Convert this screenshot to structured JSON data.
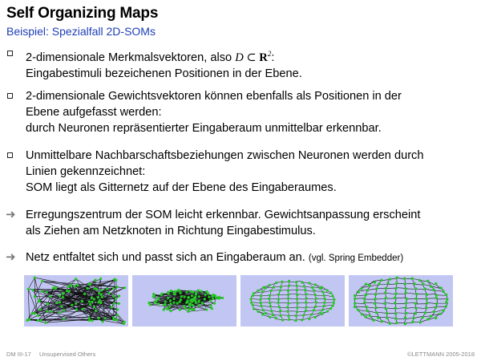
{
  "slide": {
    "title": "Self Organizing Maps",
    "subtitle": "Beispiel: Spezialfall 2D-SOMs"
  },
  "bullets": [
    {
      "type": "box",
      "lines": [
        "2-dimensionale Merkmalsvektoren, also",
        "Eingabestimuli bezeichenen Positionen in der Ebene."
      ],
      "math_pre": "D",
      "math_op": " ⊂ ",
      "math_set": "R",
      "math_sup": "2",
      "math_post": ":"
    },
    {
      "type": "box",
      "lines": [
        "2-dimensionale Gewichtsvektoren können ebenfalls als Positionen in der",
        "Ebene aufgefasst werden:",
        "durch Neuronen repräsentierter Eingaberaum unmittelbar erkennbar."
      ]
    },
    {
      "type": "box",
      "lines": [
        "Unmittelbare Nachbarschaftsbeziehungen zwischen Neuronen werden durch",
        "Linien gekennzeichnet:",
        "SOM liegt als Gitternetz auf der Ebene des Eingaberaumes."
      ]
    },
    {
      "type": "arrow",
      "lines": [
        "Erregungszentrum der SOM leicht erkennbar. Gewichtsanpassung erscheint",
        "als Ziehen am Netzknoten in Richtung Eingabestimulus."
      ]
    },
    {
      "type": "arrow",
      "lines": [
        "Netz entfaltet sich und passt sich an Eingaberaum an."
      ],
      "note": "(vgl. Spring Embedder)"
    }
  ],
  "panels": {
    "count": 4,
    "background": "#c2c6f2",
    "node_color": "#22cc22",
    "edge_color": "#111111",
    "stages": [
      "random",
      "contracted",
      "ellipse",
      "unfolded"
    ]
  },
  "footer": {
    "left_code": "DM III-17",
    "left_topic": "Unsupervised Others",
    "right": "©LETTMANN 2005-2018"
  },
  "colors": {
    "accent": "#1d3fb6",
    "arrow": "#7a7a7a",
    "footer": "#8a8a8a"
  }
}
